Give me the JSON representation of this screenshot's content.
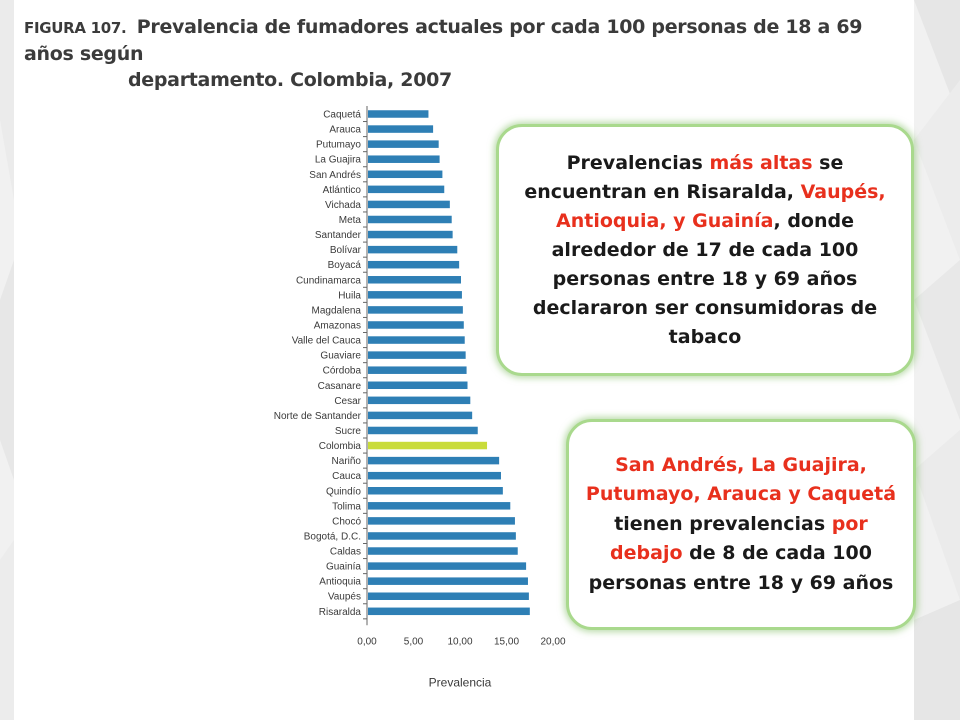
{
  "figure": {
    "label": "FIGURA 107.",
    "title_line1": "Prevalencia de fumadores actuales por cada 100 personas de 18 a 69 años según",
    "title_line2": "departamento. Colombia, 2007"
  },
  "colors": {
    "bar": "#2e7fb5",
    "highlight_bar": "#c9dc3a",
    "accent_text": "#e8301d",
    "callout_border": "#a9d98d"
  },
  "chart_data": {
    "type": "bar",
    "orientation": "horizontal",
    "xlabel": "Prevalencia",
    "xlim": [
      0,
      20
    ],
    "xticks": [
      "0,00",
      "5,00",
      "10,00",
      "15,00",
      "20,00"
    ],
    "categories": [
      "Caquetá",
      "Arauca",
      "Putumayo",
      "La Guajira",
      "San Andrés",
      "Atlántico",
      "Vichada",
      "Meta",
      "Santander",
      "Bolívar",
      "Boyacá",
      "Cundinamarca",
      "Huila",
      "Magdalena",
      "Amazonas",
      "Valle del Cauca",
      "Guaviare",
      "Córdoba",
      "Casanare",
      "Cesar",
      "Norte de Santander",
      "Sucre",
      "Colombia",
      "Nariño",
      "Cauca",
      "Quindío",
      "Tolima",
      "Chocó",
      "Bogotá, D.C.",
      "Caldas",
      "Guainía",
      "Antioquia",
      "Vaupés",
      "Risaralda"
    ],
    "values": [
      6.5,
      7.0,
      7.6,
      7.7,
      8.0,
      8.2,
      8.8,
      9.0,
      9.1,
      9.6,
      9.8,
      10.0,
      10.1,
      10.2,
      10.3,
      10.4,
      10.5,
      10.6,
      10.7,
      11.0,
      11.2,
      11.8,
      12.8,
      14.1,
      14.3,
      14.5,
      15.3,
      15.8,
      15.9,
      16.1,
      17.0,
      17.2,
      17.3,
      17.4
    ],
    "highlight": "Colombia"
  },
  "callouts": {
    "high": {
      "t1": "Prevalencias ",
      "t2": "más altas",
      "t3": " se encuentran en Risaralda, ",
      "t4": "Vaupés, Antioquia, y Guainía",
      "t5": ", donde alrededor de 17 de cada 100 personas entre 18 y 69 años declararon ser consumidoras de tabaco"
    },
    "low": {
      "t1": "San Andrés, La Guajira, Putumayo, Arauca y Caquetá",
      "t2": " tienen prevalencias ",
      "t3": "por debajo",
      "t4": " de 8 de cada 100 personas entre 18 y 69 años"
    }
  }
}
